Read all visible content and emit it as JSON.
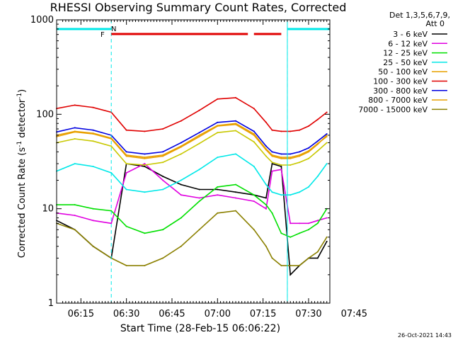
{
  "chart_data": {
    "type": "line",
    "title": "RHESSI Observing Summary Count Rates, Corrected",
    "xlabel": "Start Time (28-Feb-15 06:06:22)",
    "ylabel": "Corrected Count Rate (s",
    "ylabel_sup1": "-1",
    "ylabel_mid": " detector",
    "ylabel_sup2": "-1",
    "ylabel_end": ")",
    "y_scale": "log",
    "ylim": [
      1,
      1000
    ],
    "xlim_min": [
      6,
      96
    ],
    "ytick_values": [
      1,
      10,
      100,
      1000
    ],
    "ytick_labels": [
      "1",
      "10",
      "100",
      "1000"
    ],
    "xtick_values": [
      14,
      29,
      44,
      59,
      74,
      89
    ],
    "xtick_labels": [
      "06:15",
      "06:30",
      "06:45",
      "07:00",
      "07:15",
      "07:30",
      "07:45"
    ],
    "xtick_all": [
      14,
      29,
      44,
      59,
      74,
      89,
      104
    ],
    "legend_position": "right",
    "legend_header": [
      "Det 1,3,5,6,7,9,",
      "Att 0"
    ],
    "series": [
      {
        "name": "3 - 6 keV",
        "color": "#000000",
        "x": [
          6,
          12,
          18,
          24,
          29,
          35,
          41,
          47,
          53,
          59,
          65,
          71,
          75,
          77,
          80,
          83,
          86,
          89,
          92,
          95
        ],
        "y": [
          7.5,
          6,
          4,
          3,
          30,
          28,
          22,
          18,
          16,
          16,
          15,
          14,
          13,
          30,
          28,
          2,
          2.5,
          3,
          3,
          4.5
        ]
      },
      {
        "name": "6 - 12 keV",
        "color": "#e000e0",
        "x": [
          6,
          12,
          18,
          24,
          29,
          35,
          41,
          47,
          53,
          59,
          65,
          71,
          75,
          77,
          80,
          83,
          86,
          89,
          92,
          95
        ],
        "y": [
          9,
          8.5,
          7.5,
          7,
          24,
          30,
          20,
          14,
          13,
          14,
          13,
          12,
          10,
          25,
          26,
          7,
          7,
          7,
          7.5,
          8
        ]
      },
      {
        "name": "12 - 25 keV",
        "color": "#00e000",
        "x": [
          6,
          12,
          18,
          24,
          29,
          35,
          41,
          47,
          53,
          59,
          65,
          71,
          75,
          77,
          80,
          83,
          86,
          89,
          92,
          95
        ],
        "y": [
          11,
          11,
          10,
          9.5,
          6.5,
          5.5,
          6,
          8,
          12,
          17,
          18,
          14,
          11,
          9,
          5.5,
          5,
          5.5,
          6,
          7,
          10
        ]
      },
      {
        "name": "25 - 50 keV",
        "color": "#00e8e8",
        "x": [
          6,
          12,
          18,
          24,
          29,
          35,
          41,
          47,
          53,
          59,
          65,
          71,
          75,
          77,
          80,
          83,
          86,
          89,
          92,
          95
        ],
        "y": [
          25,
          30,
          28,
          24,
          16,
          15,
          16,
          20,
          26,
          35,
          38,
          28,
          18,
          15,
          14,
          14,
          15,
          17,
          22,
          30
        ]
      },
      {
        "name": "50 - 100 keV",
        "color": "#e8a000",
        "x": [
          6,
          12,
          18,
          24,
          29,
          35,
          41,
          47,
          53,
          59,
          65,
          71,
          75,
          77,
          80,
          83,
          86,
          89,
          92,
          95
        ],
        "y": [
          58,
          65,
          62,
          55,
          36,
          34,
          36,
          45,
          58,
          75,
          78,
          60,
          42,
          36,
          34,
          34,
          36,
          40,
          48,
          60
        ]
      },
      {
        "name": "100 - 300 keV",
        "color": "#e00000",
        "x": [
          6,
          12,
          18,
          24,
          29,
          35,
          41,
          47,
          53,
          59,
          65,
          71,
          75,
          77,
          80,
          83,
          86,
          89,
          92,
          95
        ],
        "y": [
          115,
          125,
          118,
          105,
          68,
          66,
          70,
          85,
          110,
          145,
          150,
          115,
          82,
          68,
          66,
          66,
          68,
          75,
          88,
          105
        ]
      },
      {
        "name": "300 - 800 keV",
        "color": "#0000e0",
        "x": [
          6,
          12,
          18,
          24,
          29,
          35,
          41,
          47,
          53,
          59,
          65,
          71,
          75,
          77,
          80,
          83,
          86,
          89,
          92,
          95
        ],
        "y": [
          65,
          72,
          68,
          60,
          40,
          38,
          40,
          50,
          64,
          82,
          85,
          66,
          46,
          40,
          38,
          38,
          40,
          44,
          52,
          62
        ]
      },
      {
        "name": "800 - 7000 keV",
        "color": "#e8a000",
        "x": [
          6,
          12,
          18,
          24,
          29,
          35,
          41,
          47,
          53,
          59,
          65,
          71,
          75,
          77,
          80,
          83,
          86,
          89,
          92,
          95
        ],
        "y": [
          60,
          66,
          63,
          56,
          37,
          35,
          37,
          46,
          60,
          76,
          80,
          62,
          43,
          37,
          35,
          35,
          37,
          41,
          49,
          58
        ]
      },
      {
        "name": "7000 - 15000 keV",
        "color": "#8b8000",
        "x": [
          6,
          12,
          18,
          24,
          29,
          35,
          41,
          47,
          53,
          59,
          65,
          71,
          75,
          77,
          80,
          83,
          86,
          89,
          92,
          95
        ],
        "y": [
          7,
          6,
          4,
          3,
          2.5,
          2.5,
          3,
          4,
          6,
          9,
          9.5,
          6,
          4,
          3,
          2.5,
          2.5,
          2.5,
          3,
          3.5,
          5
        ]
      },
      {
        "name": "",
        "color": "#c8c800",
        "x": [
          6,
          12,
          18,
          24,
          29,
          35,
          41,
          47,
          53,
          59,
          65,
          71,
          75,
          77,
          80,
          83,
          86,
          89,
          92,
          95
        ],
        "y": [
          50,
          55,
          52,
          46,
          30,
          29,
          31,
          38,
          49,
          64,
          67,
          51,
          36,
          31,
          29,
          29,
          31,
          34,
          41,
          50
        ]
      }
    ],
    "vlines_solid": [
      6,
      82
    ],
    "vlines_dashed": [
      24,
      82,
      96
    ],
    "night_bars": [
      [
        6,
        24
      ],
      [
        82,
        96
      ]
    ],
    "night_label": "N",
    "flare_label": "F",
    "flare_bars": [
      [
        24,
        69
      ],
      [
        71,
        80
      ]
    ],
    "bar_colors": {
      "night": "#00e8e8",
      "flare": "#e00000",
      "vline": "#00e8e8"
    }
  },
  "footer": {
    "timestamp": "26-Oct-2021 14:43"
  }
}
